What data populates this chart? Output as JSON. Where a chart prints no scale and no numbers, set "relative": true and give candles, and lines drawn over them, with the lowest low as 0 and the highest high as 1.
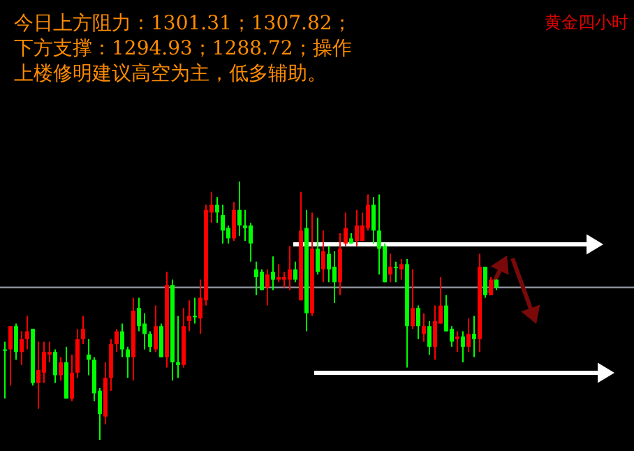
{
  "chart_data": {
    "type": "candlestick",
    "relative": true,
    "title": "今日上方阻力：1301.31；1307.82；下方支撑：1294.93；1288.72；操作上楼修明建议高空为主，低多辅助。",
    "subtitle": "黄金四小时",
    "categories": [
      null,
      null,
      null,
      null,
      null,
      null,
      null,
      null,
      null,
      null,
      null,
      null,
      null,
      null,
      null,
      null,
      null,
      null,
      null,
      null,
      null,
      null,
      null,
      null,
      null,
      null,
      null,
      null,
      null,
      null,
      null,
      null,
      null,
      null,
      null,
      null,
      null,
      null,
      null,
      null,
      null,
      null,
      null,
      null,
      null,
      null,
      null,
      null,
      null,
      null,
      null,
      null,
      null,
      null,
      null,
      null,
      null,
      null,
      null,
      null,
      null,
      null,
      null,
      null,
      null,
      null,
      null,
      null,
      null,
      null,
      null,
      null,
      null,
      null,
      null,
      null,
      null,
      null,
      null,
      null,
      null,
      null,
      null,
      null,
      null,
      null,
      null,
      null,
      null
    ],
    "ohlc": [
      [
        0.35,
        0.38,
        0.16,
        0.35
      ],
      [
        0.44,
        0.44,
        0.21,
        0.35
      ],
      [
        0.34,
        0.45,
        0.31,
        0.44
      ],
      [
        0.39,
        0.42,
        0.29,
        0.34
      ],
      [
        0.42,
        0.48,
        0.35,
        0.39
      ],
      [
        0.22,
        0.43,
        0.21,
        0.43
      ],
      [
        0.27,
        0.38,
        0.12,
        0.22
      ],
      [
        0.34,
        0.38,
        0.22,
        0.26
      ],
      [
        0.34,
        0.38,
        0.3,
        0.33
      ],
      [
        0.25,
        0.35,
        0.22,
        0.34
      ],
      [
        0.3,
        0.32,
        0.23,
        0.25
      ],
      [
        0.16,
        0.36,
        0.16,
        0.3
      ],
      [
        0.26,
        0.33,
        0.15,
        0.16
      ],
      [
        0.39,
        0.43,
        0.24,
        0.26
      ],
      [
        0.43,
        0.48,
        0.37,
        0.39
      ],
      [
        0.31,
        0.39,
        0.25,
        0.33
      ],
      [
        0.18,
        0.32,
        0.15,
        0.31
      ],
      [
        0.1,
        0.2,
        0,
        0.19
      ],
      [
        0.24,
        0.3,
        0.06,
        0.09
      ],
      [
        0.37,
        0.39,
        0.19,
        0.24
      ],
      [
        0.42,
        0.43,
        0.34,
        0.37
      ],
      [
        0.35,
        0.45,
        0.32,
        0.42
      ],
      [
        0.32,
        0.36,
        0.24,
        0.35
      ],
      [
        0.5,
        0.55,
        0.23,
        0.32
      ],
      [
        0.44,
        0.55,
        0.42,
        0.51
      ],
      [
        0.41,
        0.49,
        0.35,
        0.45
      ],
      [
        0.36,
        0.42,
        0.34,
        0.41
      ],
      [
        0.44,
        0.52,
        0.34,
        0.35
      ],
      [
        0.32,
        0.45,
        0.32,
        0.44
      ],
      [
        0.6,
        0.65,
        0.28,
        0.32
      ],
      [
        0.3,
        0.62,
        0.23,
        0.6
      ],
      [
        0.29,
        0.48,
        0.24,
        0.3
      ],
      [
        0.44,
        0.51,
        0.28,
        0.29
      ],
      [
        0.48,
        0.54,
        0.42,
        0.46
      ],
      [
        0.48,
        0.55,
        0.45,
        0.48
      ],
      [
        0.55,
        0.62,
        0.41,
        0.47
      ],
      [
        0.89,
        0.91,
        0.52,
        0.54
      ],
      [
        0.91,
        0.96,
        0.84,
        0.88
      ],
      [
        0.88,
        0.94,
        0.84,
        0.91
      ],
      [
        0.81,
        0.91,
        0.76,
        0.87
      ],
      [
        0.78,
        0.83,
        0.76,
        0.82
      ],
      [
        0.89,
        0.92,
        0.77,
        0.78
      ],
      [
        0.83,
        1,
        0.79,
        0.89
      ],
      [
        0.82,
        0.89,
        0.77,
        0.83
      ],
      [
        0.76,
        0.84,
        0.69,
        0.83
      ],
      [
        0.63,
        0.69,
        0.56,
        0.66
      ],
      [
        0.58,
        0.66,
        0.58,
        0.65
      ],
      [
        0.64,
        0.66,
        0.52,
        0.59
      ],
      [
        0.62,
        0.71,
        0.58,
        0.65
      ],
      [
        0.63,
        0.68,
        0.61,
        0.62
      ],
      [
        0.63,
        0.65,
        0.59,
        0.62
      ],
      [
        0.66,
        0.75,
        0.58,
        0.62
      ],
      [
        0.62,
        0.69,
        0.61,
        0.66
      ],
      [
        0.81,
        0.96,
        0.54,
        0.54
      ],
      [
        0.49,
        0.89,
        0.42,
        0.82
      ],
      [
        0.74,
        0.88,
        0.48,
        0.49
      ],
      [
        0.65,
        0.86,
        0.64,
        0.74
      ],
      [
        0.73,
        0.81,
        0.61,
        0.66
      ],
      [
        0.66,
        0.75,
        0.61,
        0.72
      ],
      [
        0.61,
        0.73,
        0.53,
        0.67
      ],
      [
        0.74,
        0.8,
        0.56,
        0.61
      ],
      [
        0.82,
        0.88,
        0.75,
        0.76
      ],
      [
        0.76,
        0.8,
        0.76,
        0.78
      ],
      [
        0.83,
        0.89,
        0.75,
        0.77
      ],
      [
        0.83,
        0.88,
        0.77,
        0.77
      ],
      [
        0.91,
        0.95,
        0.81,
        0.82
      ],
      [
        0.81,
        0.94,
        0.76,
        0.91
      ],
      [
        0.74,
        0.95,
        0.64,
        0.81
      ],
      [
        0.61,
        0.76,
        0.61,
        0.75
      ],
      [
        0.67,
        0.72,
        0.61,
        0.64
      ],
      [
        0.67,
        0.69,
        0.61,
        0.67
      ],
      [
        0.68,
        0.7,
        0.62,
        0.66
      ],
      [
        0.44,
        0.7,
        0.28,
        0.68
      ],
      [
        0.51,
        0.66,
        0.43,
        0.44
      ],
      [
        0.44,
        0.52,
        0.39,
        0.51
      ],
      [
        0.44,
        0.49,
        0.38,
        0.41
      ],
      [
        0.36,
        0.46,
        0.33,
        0.44
      ],
      [
        0.46,
        0.52,
        0.31,
        0.36
      ],
      [
        0.52,
        0.63,
        0.45,
        0.45
      ],
      [
        0.42,
        0.56,
        0.42,
        0.52
      ],
      [
        0.38,
        0.44,
        0.36,
        0.43
      ],
      [
        0.4,
        0.42,
        0.34,
        0.39
      ],
      [
        0.36,
        0.42,
        0.3,
        0.4
      ],
      [
        0.41,
        0.47,
        0.34,
        0.36
      ],
      [
        0.39,
        0.48,
        0.32,
        0.41
      ],
      [
        0.67,
        0.72,
        0.34,
        0.39
      ],
      [
        0.56,
        0.67,
        0.55,
        0.67
      ],
      [
        0.62,
        0.63,
        0.56,
        0.56
      ],
      [
        0.59,
        0.62,
        0.58,
        0.62
      ]
    ],
    "colors": [
      "#00ff00",
      "#ff0000",
      "#00ff00",
      "#ff0000",
      "#ff0000",
      "#00ff00",
      "#ff0000",
      "#ff0000",
      "#ff0000",
      "#00ff00",
      "#ff0000",
      "#00ff00",
      "#ff0000",
      "#ff0000",
      "#ff0000",
      "#00ff00",
      "#00ff00",
      "#00ff00",
      "#ff0000",
      "#ff0000",
      "#ff0000",
      "#00ff00",
      "#00ff00",
      "#ff0000",
      "#00ff00",
      "#00ff00",
      "#00ff00",
      "#ff0000",
      "#00ff00",
      "#ff0000",
      "#00ff00",
      "#00ff00",
      "#ff0000",
      "#ff0000",
      "#00ff00",
      "#ff0000",
      "#ff0000",
      "#ff0000",
      "#00ff00",
      "#00ff00",
      "#00ff00",
      "#ff0000",
      "#00ff00",
      "#00ff00",
      "#00ff00",
      "#00ff00",
      "#00ff00",
      "#ff0000",
      "#00ff00",
      "#ff0000",
      "#ff0000",
      "#ff0000",
      "#00ff00",
      "#ff0000",
      "#00ff00",
      "#ff0000",
      "#00ff00",
      "#ff0000",
      "#00ff00",
      "#00ff00",
      "#ff0000",
      "#ff0000",
      "#00ff00",
      "#ff0000",
      "#ff0000",
      "#ff0000",
      "#00ff00",
      "#00ff00",
      "#00ff00",
      "#ff0000",
      "#00ff00",
      "#ff0000",
      "#00ff00",
      "#ff0000",
      "#00ff00",
      "#ff0000",
      "#00ff00",
      "#ff0000",
      "#ff0000",
      "#00ff00",
      "#00ff00",
      "#ff0000",
      "#00ff00",
      "#ff0000",
      "#00ff00",
      "#ff0000",
      "#00ff00",
      "#ff0000",
      "#00ff00"
    ],
    "ref_lines": [
      {
        "axis": "y",
        "value": 0.59,
        "color": "#8a8f99"
      }
    ]
  }
}
